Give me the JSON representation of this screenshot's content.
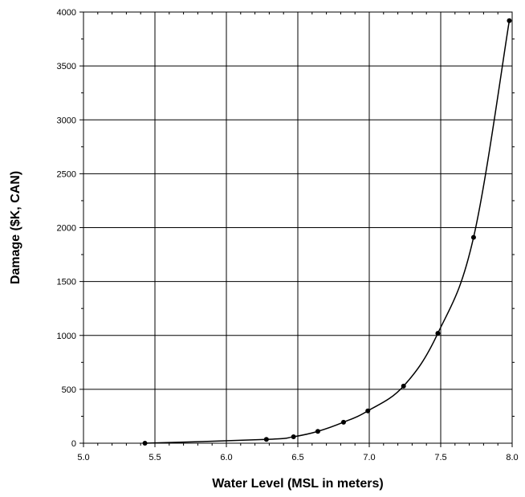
{
  "chart_data": {
    "type": "line",
    "title": "",
    "xlabel": "Water Level (MSL in meters)",
    "ylabel": "Damage ($K, CAN)",
    "xlim": [
      5.0,
      8.0
    ],
    "ylim": [
      0,
      4000
    ],
    "x_ticks": [
      "5.0",
      "5.5",
      "6.0",
      "6.5",
      "7.0",
      "7.5",
      "8.0"
    ],
    "y_ticks": [
      "0",
      "500",
      "1000",
      "1500",
      "2000",
      "2500",
      "3000",
      "3500",
      "4000"
    ],
    "grid": true,
    "legend": "none",
    "series": [
      {
        "markers": true,
        "smooth": true,
        "x": [
          5.43,
          6.28,
          6.47,
          6.64,
          6.82,
          6.99,
          7.24,
          7.48,
          7.73,
          7.98
        ],
        "y": [
          0,
          35,
          60,
          110,
          195,
          300,
          530,
          1020,
          1910,
          3920
        ]
      }
    ]
  }
}
